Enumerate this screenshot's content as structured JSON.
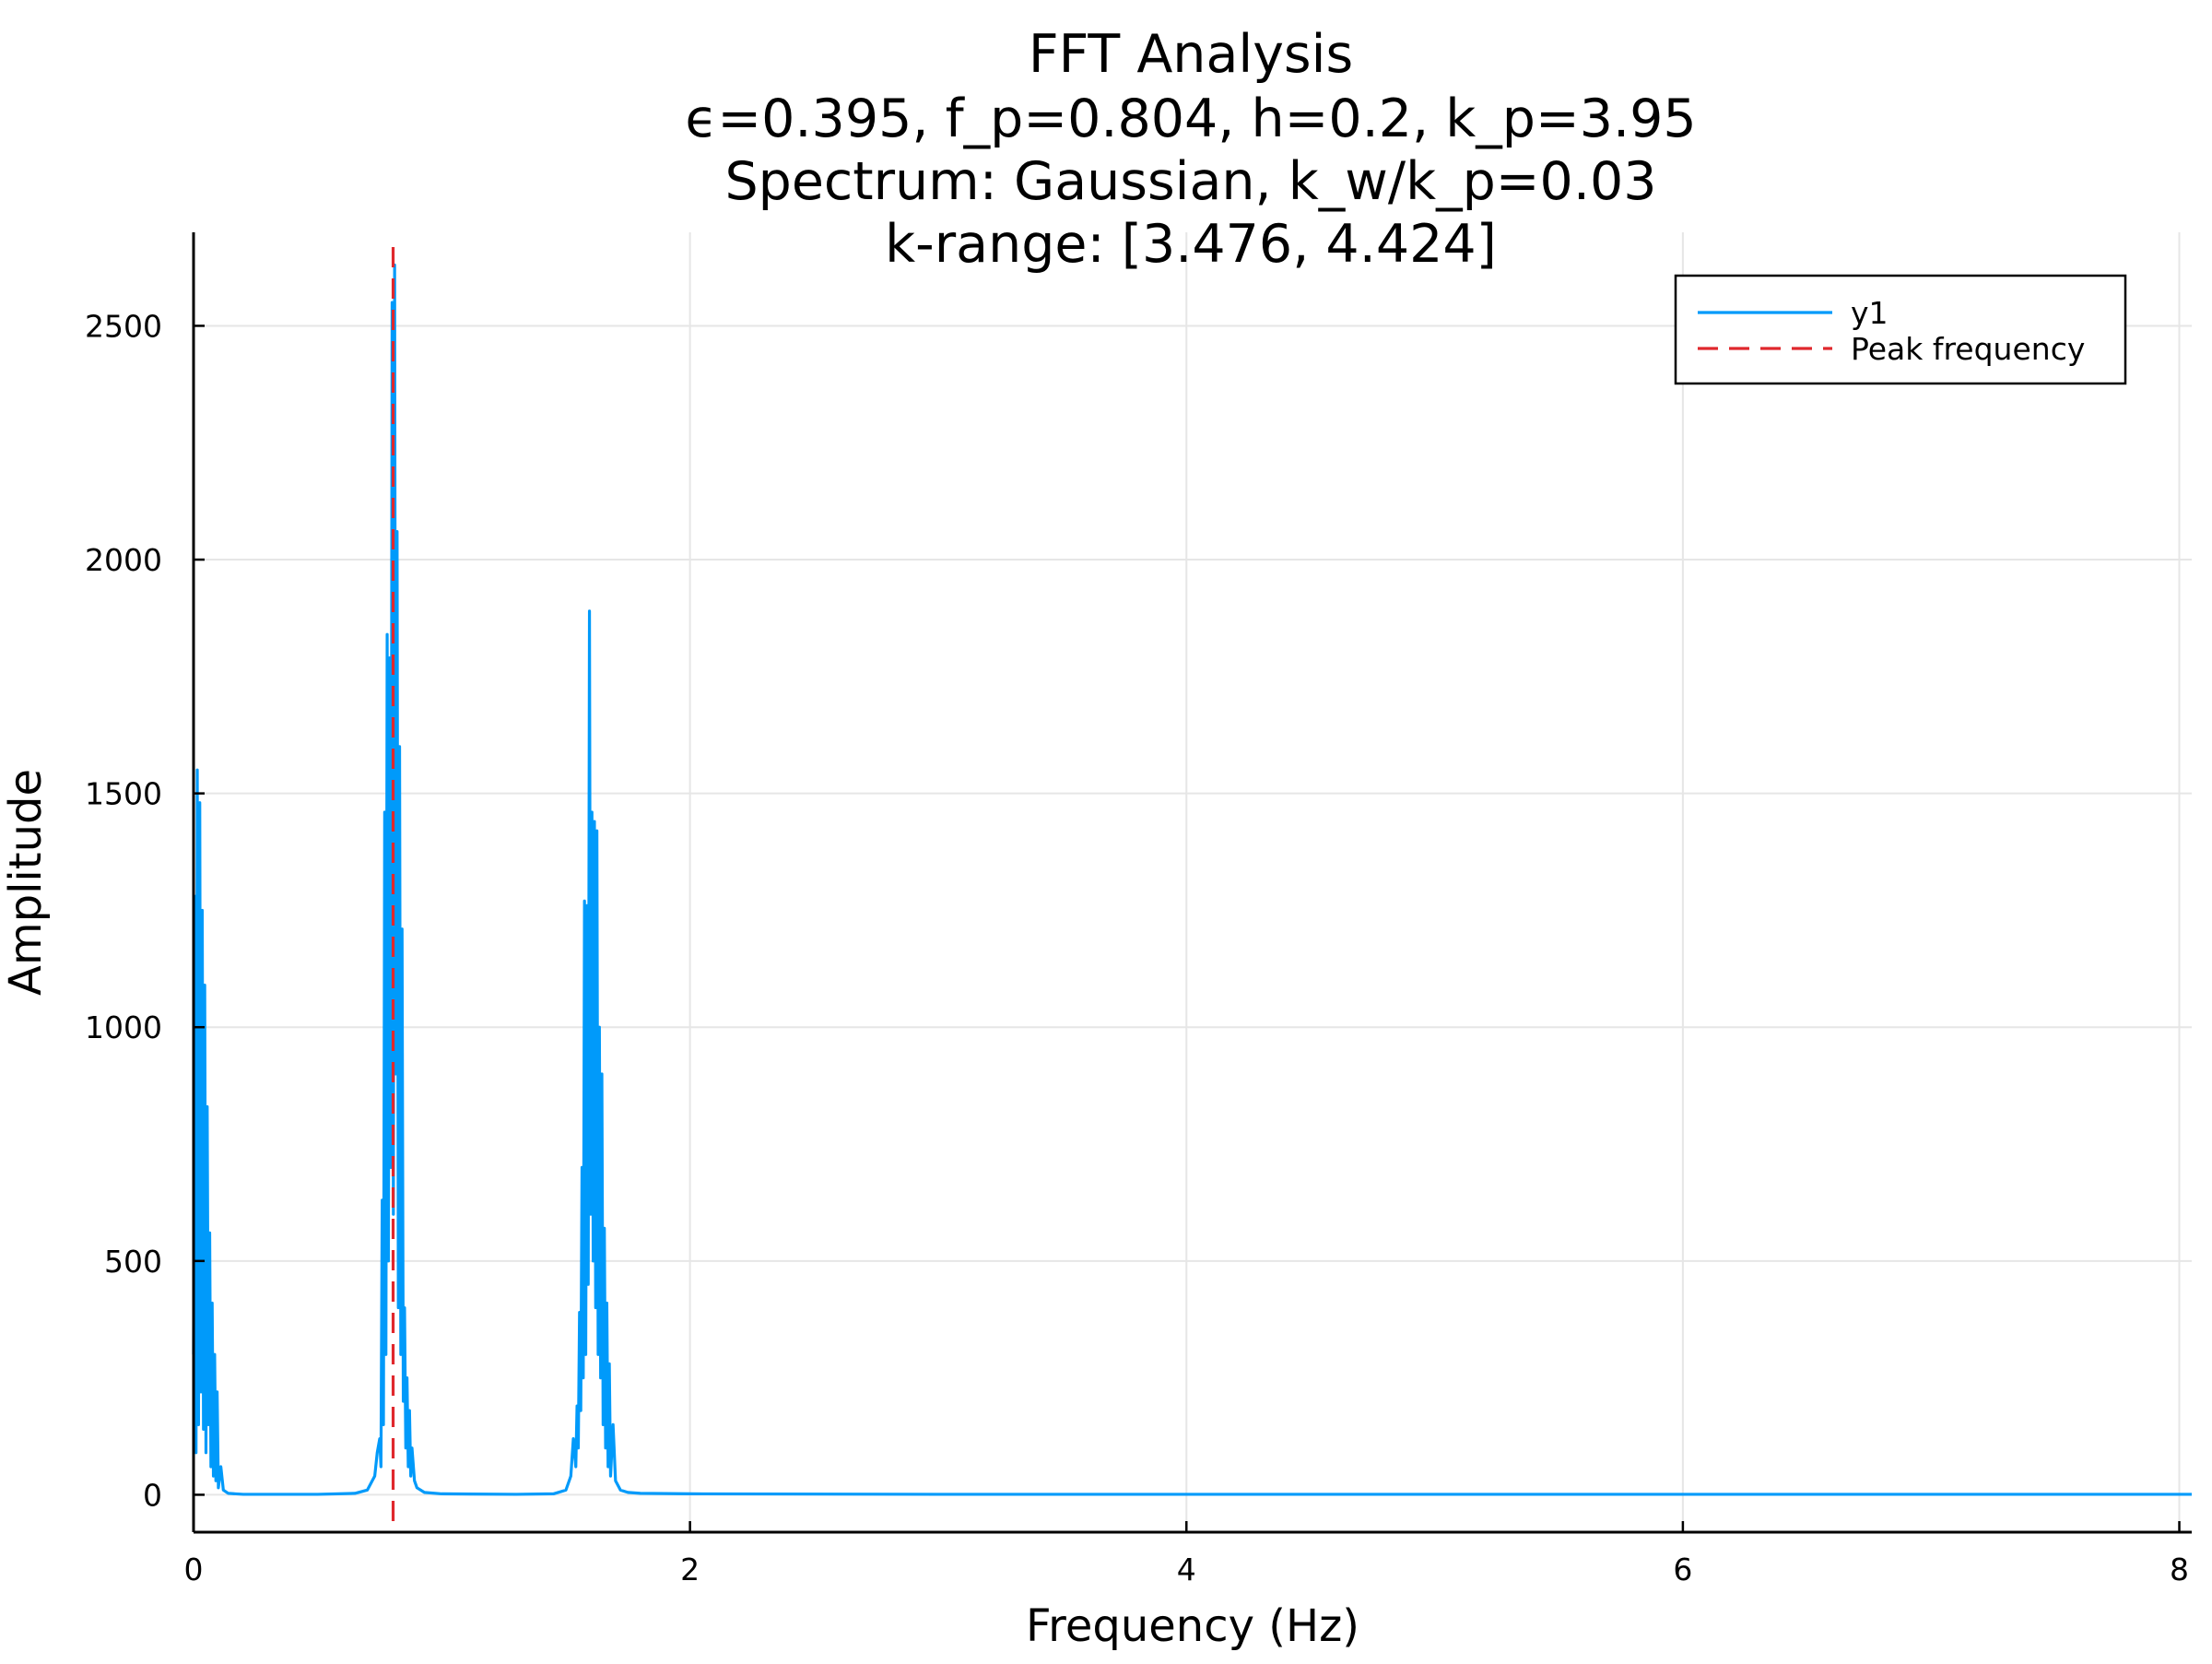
{
  "chart_data": {
    "type": "line",
    "title_lines": [
      "FFT Analysis",
      "ϵ=0.395, f_p=0.804, h=0.2, k_p=3.95",
      "Spectrum: Gaussian, k_w/k_p=0.03",
      "k-range: [3.476, 4.424]"
    ],
    "xlabel": "Frequency (Hz)",
    "ylabel": "Amplitude",
    "xlim": [
      0,
      8.05
    ],
    "ylim": [
      -80,
      2700
    ],
    "xticks": [
      0,
      2,
      4,
      6,
      8
    ],
    "xtick_labels": [
      "0",
      "2",
      "4",
      "6",
      "8"
    ],
    "yticks": [
      0,
      500,
      1000,
      1500,
      2000,
      2500
    ],
    "ytick_labels": [
      "0",
      "500",
      "1000",
      "1500",
      "2000",
      "2500"
    ],
    "grid": true,
    "legend_position": "top-right",
    "series": [
      {
        "name": "y1",
        "style": "solid",
        "color": "#009AFA",
        "points": [
          [
            0.0,
            300
          ],
          [
            0.005,
            1280
          ],
          [
            0.01,
            90
          ],
          [
            0.015,
            1550
          ],
          [
            0.02,
            150
          ],
          [
            0.025,
            1480
          ],
          [
            0.03,
            220
          ],
          [
            0.035,
            1250
          ],
          [
            0.04,
            140
          ],
          [
            0.045,
            1090
          ],
          [
            0.05,
            90
          ],
          [
            0.055,
            830
          ],
          [
            0.06,
            150
          ],
          [
            0.065,
            560
          ],
          [
            0.07,
            60
          ],
          [
            0.075,
            410
          ],
          [
            0.08,
            40
          ],
          [
            0.085,
            300
          ],
          [
            0.09,
            30
          ],
          [
            0.095,
            220
          ],
          [
            0.1,
            15
          ],
          [
            0.11,
            60
          ],
          [
            0.12,
            10
          ],
          [
            0.14,
            3
          ],
          [
            0.2,
            1
          ],
          [
            0.5,
            1
          ],
          [
            0.65,
            3
          ],
          [
            0.7,
            10
          ],
          [
            0.73,
            40
          ],
          [
            0.74,
            90
          ],
          [
            0.75,
            120
          ],
          [
            0.755,
            60
          ],
          [
            0.76,
            630
          ],
          [
            0.765,
            150
          ],
          [
            0.77,
            1460
          ],
          [
            0.775,
            300
          ],
          [
            0.78,
            1840
          ],
          [
            0.785,
            500
          ],
          [
            0.79,
            1790
          ],
          [
            0.795,
            700
          ],
          [
            0.8,
            2550
          ],
          [
            0.805,
            600
          ],
          [
            0.81,
            2630
          ],
          [
            0.815,
            900
          ],
          [
            0.82,
            2060
          ],
          [
            0.825,
            400
          ],
          [
            0.83,
            1600
          ],
          [
            0.835,
            300
          ],
          [
            0.84,
            1210
          ],
          [
            0.845,
            200
          ],
          [
            0.85,
            400
          ],
          [
            0.855,
            100
          ],
          [
            0.86,
            250
          ],
          [
            0.865,
            60
          ],
          [
            0.87,
            180
          ],
          [
            0.875,
            40
          ],
          [
            0.88,
            100
          ],
          [
            0.89,
            30
          ],
          [
            0.9,
            15
          ],
          [
            0.93,
            5
          ],
          [
            1.0,
            2
          ],
          [
            1.3,
            1
          ],
          [
            1.45,
            2
          ],
          [
            1.5,
            10
          ],
          [
            1.52,
            40
          ],
          [
            1.53,
            120
          ],
          [
            1.54,
            60
          ],
          [
            1.545,
            190
          ],
          [
            1.55,
            100
          ],
          [
            1.555,
            390
          ],
          [
            1.56,
            180
          ],
          [
            1.565,
            700
          ],
          [
            1.57,
            250
          ],
          [
            1.575,
            1270
          ],
          [
            1.58,
            300
          ],
          [
            1.585,
            1260
          ],
          [
            1.59,
            450
          ],
          [
            1.595,
            1890
          ],
          [
            1.6,
            600
          ],
          [
            1.605,
            1460
          ],
          [
            1.61,
            500
          ],
          [
            1.615,
            1440
          ],
          [
            1.62,
            400
          ],
          [
            1.625,
            1420
          ],
          [
            1.63,
            300
          ],
          [
            1.635,
            1000
          ],
          [
            1.64,
            250
          ],
          [
            1.645,
            900
          ],
          [
            1.65,
            150
          ],
          [
            1.655,
            570
          ],
          [
            1.66,
            100
          ],
          [
            1.665,
            410
          ],
          [
            1.67,
            60
          ],
          [
            1.675,
            280
          ],
          [
            1.68,
            40
          ],
          [
            1.69,
            150
          ],
          [
            1.7,
            30
          ],
          [
            1.72,
            10
          ],
          [
            1.75,
            5
          ],
          [
            1.8,
            3
          ],
          [
            2.0,
            2
          ],
          [
            3.0,
            1
          ],
          [
            4.0,
            1
          ],
          [
            5.0,
            1
          ],
          [
            6.0,
            1
          ],
          [
            7.0,
            1
          ],
          [
            8.05,
            1
          ]
        ]
      },
      {
        "name": "Peak frequency",
        "style": "dashed",
        "color": "#E0282D",
        "x": 0.804
      }
    ]
  }
}
